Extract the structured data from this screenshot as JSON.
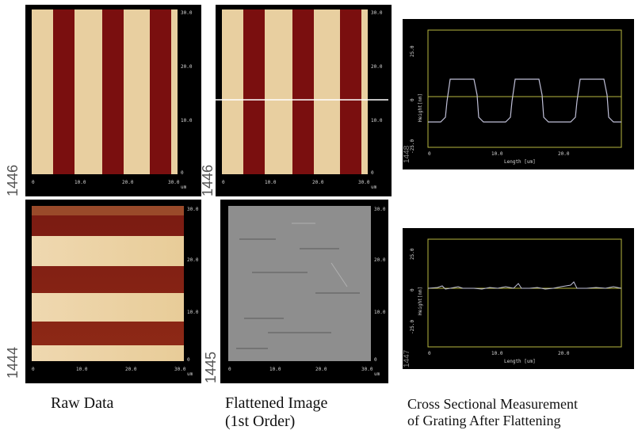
{
  "images": {
    "top_raw": {
      "id_label": "1446",
      "x_ticks": [
        "0",
        "10.0",
        "20.0",
        "30.0"
      ],
      "y_ticks": [
        "30.0",
        "20.0",
        "10.0",
        "0"
      ],
      "unit": "um"
    },
    "top_flat": {
      "id_label": "1446",
      "x_ticks": [
        "0",
        "10.0",
        "20.0",
        "30.0"
      ],
      "y_ticks": [
        "30.0",
        "20.0",
        "10.0",
        "0"
      ],
      "unit": "um"
    },
    "bottom_raw": {
      "id_label": "1444",
      "x_ticks": [
        "0",
        "10.0",
        "20.0",
        "30.0"
      ],
      "y_ticks": [
        "30.0",
        "20.0",
        "10.0",
        "0"
      ],
      "unit": "um"
    },
    "bottom_flat": {
      "id_label": "1445",
      "x_ticks": [
        "0",
        "10.0",
        "20.0",
        "30.0"
      ],
      "y_ticks": [
        "30.0",
        "20.0",
        "10.0",
        "0"
      ],
      "unit": "um"
    }
  },
  "profiles": {
    "top": {
      "id_label": "1448",
      "y_top": "25.0",
      "y_zero": "0",
      "y_bottom": "-25.0",
      "ylabel": "Height[nm]",
      "xlabel": "Length [um]",
      "x_ticks": [
        "0",
        "10.0",
        "20.0"
      ]
    },
    "bottom": {
      "id_label": "1447",
      "y_top": "25.0",
      "y_zero": "0",
      "y_bottom": "-25.0",
      "ylabel": "Height[nm]",
      "xlabel": "Length [um]",
      "x_ticks": [
        "0",
        "10.0",
        "20.0"
      ]
    }
  },
  "captions": {
    "raw": "Raw Data",
    "flat_line1": "Flattened Image",
    "flat_line2": "(1st Order)",
    "cross_line1": "Cross Sectional Measurement",
    "cross_line2": "of Grating After Flattening"
  }
}
